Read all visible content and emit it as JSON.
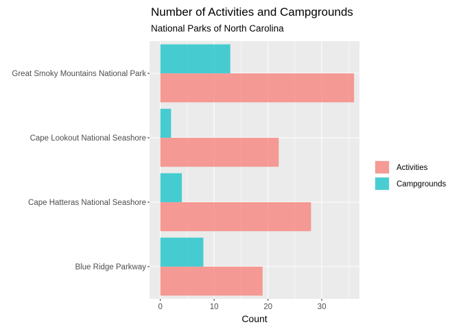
{
  "chart_data": {
    "type": "bar",
    "orientation": "horizontal",
    "title": "Number of Activities and Campgrounds",
    "subtitle": "National Parks of North Carolina",
    "xlabel": "Count",
    "ylabel": "",
    "categories": [
      "Great Smoky Mountains National Park",
      "Cape Lookout National Seashore",
      "Cape Hatteras National Seashore",
      "Blue Ridge Parkway"
    ],
    "series": [
      {
        "name": "Activities",
        "color": "#F8766D",
        "values": [
          36,
          22,
          28,
          19
        ]
      },
      {
        "name": "Campgrounds",
        "color": "#00BFC4",
        "values": [
          13,
          2,
          4,
          8
        ]
      }
    ],
    "xlim": [
      -2,
      37
    ],
    "xticks": [
      0,
      10,
      20,
      30
    ],
    "xtick_labels": [
      "0",
      "10",
      "20",
      "30"
    ],
    "grid": true,
    "legend_position": "right",
    "panel_background": "#EBEBEB"
  }
}
